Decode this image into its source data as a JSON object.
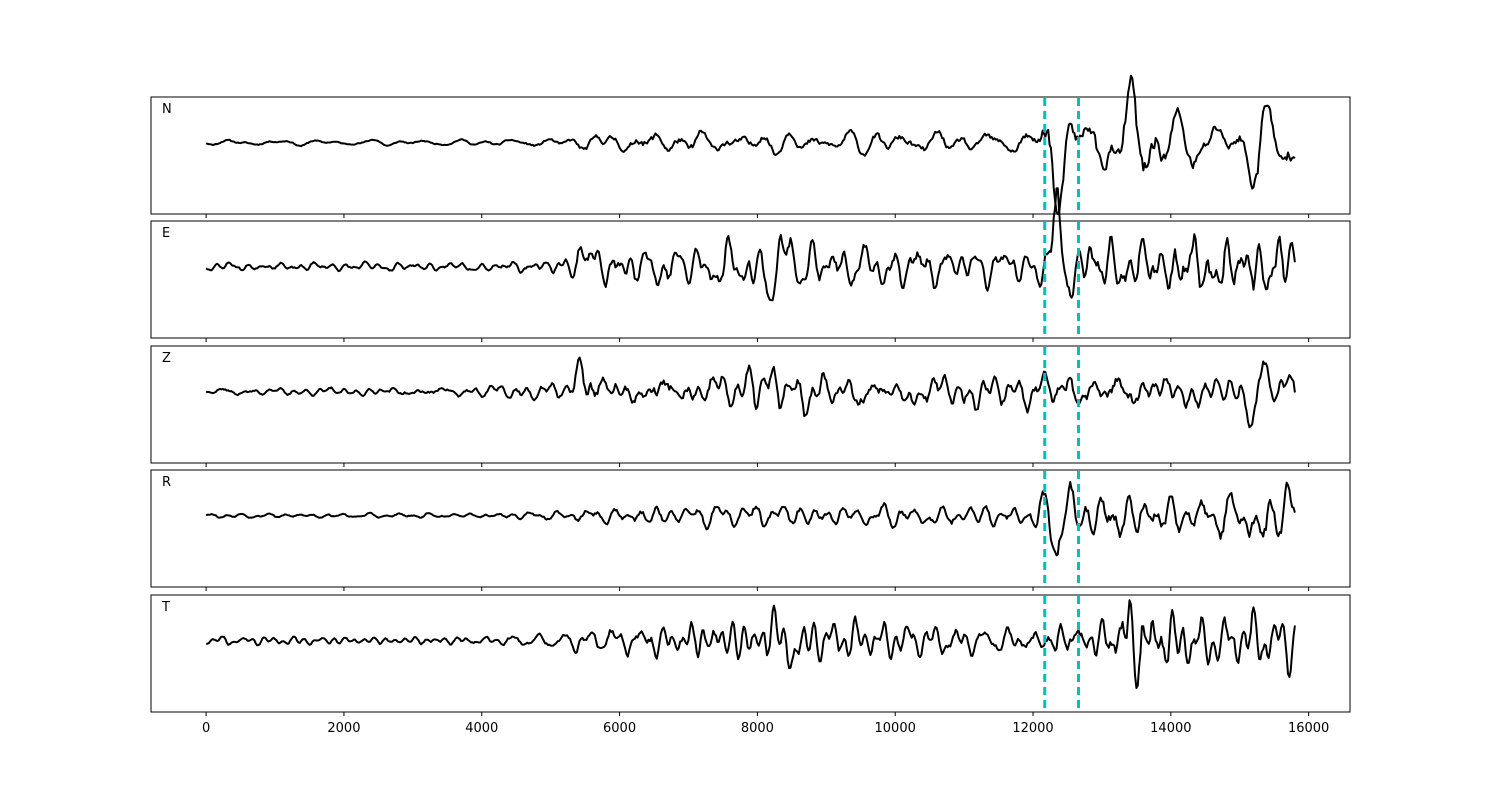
{
  "chart_data": {
    "type": "line",
    "title": "",
    "xlabel": "",
    "ylabel": "",
    "xlim": [
      -800,
      16600
    ],
    "x_ticks": [
      0,
      2000,
      4000,
      6000,
      8000,
      10000,
      12000,
      14000,
      16000
    ],
    "x_tick_labels": [
      "0",
      "2000",
      "4000",
      "6000",
      "8000",
      "10000",
      "12000",
      "14000",
      "16000"
    ],
    "sample_count": 15800,
    "grid": false,
    "legend": "none",
    "line_color": "#000000",
    "marker_color": "#00bfbf",
    "markers": [
      12170,
      12660
    ],
    "panels": [
      {
        "label": "N",
        "envelope": [
          [
            0,
            0.03
          ],
          [
            2000,
            0.03
          ],
          [
            4000,
            0.03
          ],
          [
            5200,
            0.06
          ],
          [
            5800,
            0.15
          ],
          [
            6500,
            0.17
          ],
          [
            7500,
            0.15
          ],
          [
            9000,
            0.13
          ],
          [
            11000,
            0.13
          ],
          [
            12000,
            0.14
          ],
          [
            12300,
            0.55
          ],
          [
            12600,
            0.35
          ],
          [
            13200,
            0.3
          ],
          [
            13400,
            0.6
          ],
          [
            14000,
            0.3
          ],
          [
            15000,
            0.25
          ],
          [
            15300,
            0.45
          ],
          [
            15800,
            0.3
          ]
        ],
        "events": [
          {
            "x": 12370,
            "amp": -0.6,
            "w": 40
          },
          {
            "x": 13420,
            "amp": 0.35,
            "w": 40
          },
          {
            "x": 13250,
            "amp": -0.3,
            "w": 40
          },
          {
            "x": 15300,
            "amp": -0.35,
            "w": 40
          }
        ],
        "seed": 11
      },
      {
        "label": "E",
        "envelope": [
          [
            0,
            0.05
          ],
          [
            2000,
            0.05
          ],
          [
            4000,
            0.05
          ],
          [
            5000,
            0.08
          ],
          [
            5500,
            0.2
          ],
          [
            6500,
            0.2
          ],
          [
            8000,
            0.25
          ],
          [
            9000,
            0.22
          ],
          [
            11000,
            0.2
          ],
          [
            12000,
            0.2
          ],
          [
            12300,
            0.5
          ],
          [
            12600,
            0.3
          ],
          [
            13000,
            0.35
          ],
          [
            14000,
            0.35
          ],
          [
            15800,
            0.35
          ]
        ],
        "events": [
          {
            "x": 12320,
            "amp": 0.6,
            "w": 40
          },
          {
            "x": 8200,
            "amp": -0.3,
            "w": 40
          },
          {
            "x": 5450,
            "amp": 0.3,
            "w": 40
          },
          {
            "x": 8480,
            "amp": 0.35,
            "w": 40
          }
        ],
        "seed": 23
      },
      {
        "label": "Z",
        "envelope": [
          [
            0,
            0.04
          ],
          [
            2000,
            0.05
          ],
          [
            4000,
            0.08
          ],
          [
            5200,
            0.12
          ],
          [
            5500,
            0.25
          ],
          [
            6000,
            0.2
          ],
          [
            8000,
            0.25
          ],
          [
            9000,
            0.25
          ],
          [
            11000,
            0.2
          ],
          [
            12000,
            0.2
          ],
          [
            13000,
            0.25
          ],
          [
            14000,
            0.22
          ],
          [
            15000,
            0.2
          ],
          [
            15800,
            0.25
          ]
        ],
        "events": [
          {
            "x": 5440,
            "amp": 0.5,
            "w": 40
          },
          {
            "x": 7910,
            "amp": 0.28,
            "w": 40
          },
          {
            "x": 15200,
            "amp": -0.42,
            "w": 40
          },
          {
            "x": 15320,
            "amp": 0.4,
            "w": 40
          }
        ],
        "seed": 37
      },
      {
        "label": "R",
        "envelope": [
          [
            0,
            0.03
          ],
          [
            2000,
            0.03
          ],
          [
            4000,
            0.03
          ],
          [
            5200,
            0.06
          ],
          [
            5800,
            0.12
          ],
          [
            7000,
            0.12
          ],
          [
            8000,
            0.15
          ],
          [
            9000,
            0.13
          ],
          [
            11000,
            0.13
          ],
          [
            12000,
            0.14
          ],
          [
            12300,
            0.45
          ],
          [
            12600,
            0.3
          ],
          [
            13000,
            0.3
          ],
          [
            14000,
            0.25
          ],
          [
            15000,
            0.25
          ],
          [
            15300,
            0.4
          ],
          [
            15800,
            0.3
          ]
        ],
        "events": [
          {
            "x": 12370,
            "amp": -0.55,
            "w": 40
          },
          {
            "x": 12420,
            "amp": 0.35,
            "w": 40
          },
          {
            "x": 15300,
            "amp": -0.38,
            "w": 40
          },
          {
            "x": 15700,
            "amp": 0.25,
            "w": 40
          }
        ],
        "seed": 53
      },
      {
        "label": "T",
        "envelope": [
          [
            0,
            0.04
          ],
          [
            2000,
            0.04
          ],
          [
            4000,
            0.05
          ],
          [
            5000,
            0.08
          ],
          [
            5600,
            0.15
          ],
          [
            7000,
            0.2
          ],
          [
            8000,
            0.22
          ],
          [
            9000,
            0.2
          ],
          [
            11000,
            0.15
          ],
          [
            12000,
            0.15
          ],
          [
            12300,
            0.3
          ],
          [
            13000,
            0.3
          ],
          [
            13400,
            0.5
          ],
          [
            14000,
            0.3
          ],
          [
            15000,
            0.25
          ],
          [
            15800,
            0.25
          ]
        ],
        "events": [
          {
            "x": 13420,
            "amp": 0.45,
            "w": 40
          },
          {
            "x": 13480,
            "amp": -0.45,
            "w": 40
          },
          {
            "x": 8240,
            "amp": 0.25,
            "w": 40
          },
          {
            "x": 8480,
            "amp": -0.25,
            "w": 40
          }
        ],
        "seed": 71
      }
    ]
  }
}
